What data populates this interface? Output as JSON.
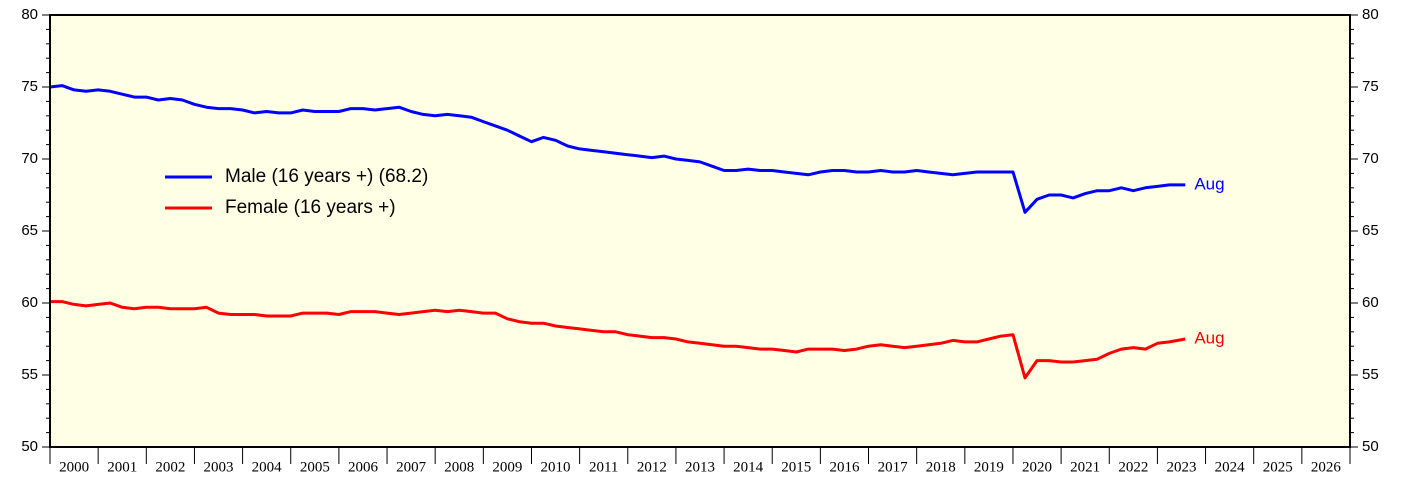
{
  "chart_data": {
    "type": "line",
    "categories": [
      "2000",
      "2001",
      "2002",
      "2003",
      "2004",
      "2005",
      "2006",
      "2007",
      "2008",
      "2009",
      "2010",
      "2011",
      "2012",
      "2013",
      "2014",
      "2015",
      "2016",
      "2017",
      "2018",
      "2019",
      "2020",
      "2021",
      "2022",
      "2023",
      "2024",
      "2025",
      "2026"
    ],
    "x": [
      2000,
      2000.25,
      2000.5,
      2000.75,
      2001,
      2001.25,
      2001.5,
      2001.75,
      2002,
      2002.25,
      2002.5,
      2002.75,
      2003,
      2003.25,
      2003.5,
      2003.75,
      2004,
      2004.25,
      2004.5,
      2004.75,
      2005,
      2005.25,
      2005.5,
      2005.75,
      2006,
      2006.25,
      2006.5,
      2006.75,
      2007,
      2007.25,
      2007.5,
      2007.75,
      2008,
      2008.25,
      2008.5,
      2008.75,
      2009,
      2009.25,
      2009.5,
      2009.75,
      2010,
      2010.25,
      2010.5,
      2010.75,
      2011,
      2011.25,
      2011.5,
      2011.75,
      2012,
      2012.25,
      2012.5,
      2012.75,
      2013,
      2013.25,
      2013.5,
      2013.75,
      2014,
      2014.25,
      2014.5,
      2014.75,
      2015,
      2015.25,
      2015.5,
      2015.75,
      2016,
      2016.25,
      2016.5,
      2016.75,
      2017,
      2017.25,
      2017.5,
      2017.75,
      2018,
      2018.25,
      2018.5,
      2018.75,
      2019,
      2019.25,
      2019.5,
      2019.75,
      2020,
      2020.25,
      2020.5,
      2020.75,
      2021,
      2021.25,
      2021.5,
      2021.75,
      2022,
      2022.25,
      2022.5,
      2022.75,
      2023,
      2023.25,
      2023.58
    ],
    "series": [
      {
        "name": "Male (16 years +) (68.2)",
        "color": "#0000ff",
        "annotation": "Aug",
        "values": [
          75.0,
          75.1,
          74.8,
          74.7,
          74.8,
          74.7,
          74.5,
          74.3,
          74.3,
          74.1,
          74.2,
          74.1,
          73.8,
          73.6,
          73.5,
          73.5,
          73.4,
          73.2,
          73.3,
          73.2,
          73.2,
          73.4,
          73.3,
          73.3,
          73.3,
          73.5,
          73.5,
          73.4,
          73.5,
          73.6,
          73.3,
          73.1,
          73.0,
          73.1,
          73.0,
          72.9,
          72.6,
          72.3,
          72.0,
          71.6,
          71.2,
          71.5,
          71.3,
          70.9,
          70.7,
          70.6,
          70.5,
          70.4,
          70.3,
          70.2,
          70.1,
          70.2,
          70.0,
          69.9,
          69.8,
          69.5,
          69.2,
          69.2,
          69.3,
          69.2,
          69.2,
          69.1,
          69.0,
          68.9,
          69.1,
          69.2,
          69.2,
          69.1,
          69.1,
          69.2,
          69.1,
          69.1,
          69.2,
          69.1,
          69.0,
          68.9,
          69.0,
          69.1,
          69.1,
          69.1,
          69.1,
          66.3,
          67.2,
          67.5,
          67.5,
          67.3,
          67.6,
          67.8,
          67.8,
          68.0,
          67.8,
          68.0,
          68.1,
          68.2,
          68.2
        ]
      },
      {
        "name": "Female (16 years +)",
        "color": "#ff0000",
        "annotation": "Aug",
        "values": [
          60.1,
          60.1,
          59.9,
          59.8,
          59.9,
          60.0,
          59.7,
          59.6,
          59.7,
          59.7,
          59.6,
          59.6,
          59.6,
          59.7,
          59.3,
          59.2,
          59.2,
          59.2,
          59.1,
          59.1,
          59.1,
          59.3,
          59.3,
          59.3,
          59.2,
          59.4,
          59.4,
          59.4,
          59.3,
          59.2,
          59.3,
          59.4,
          59.5,
          59.4,
          59.5,
          59.4,
          59.3,
          59.3,
          58.9,
          58.7,
          58.6,
          58.6,
          58.4,
          58.3,
          58.2,
          58.1,
          58.0,
          58.0,
          57.8,
          57.7,
          57.6,
          57.6,
          57.5,
          57.3,
          57.2,
          57.1,
          57.0,
          57.0,
          56.9,
          56.8,
          56.8,
          56.7,
          56.6,
          56.8,
          56.8,
          56.8,
          56.7,
          56.8,
          57.0,
          57.1,
          57.0,
          56.9,
          57.0,
          57.1,
          57.2,
          57.4,
          57.3,
          57.3,
          57.5,
          57.7,
          57.8,
          54.8,
          56.0,
          56.0,
          55.9,
          55.9,
          56.0,
          56.1,
          56.5,
          56.8,
          56.9,
          56.8,
          57.2,
          57.3,
          57.5
        ]
      }
    ],
    "xlim": [
      2000,
      2027
    ],
    "ylim": [
      50,
      80
    ],
    "yticks": [
      50,
      55,
      60,
      65,
      70,
      75,
      80
    ]
  }
}
